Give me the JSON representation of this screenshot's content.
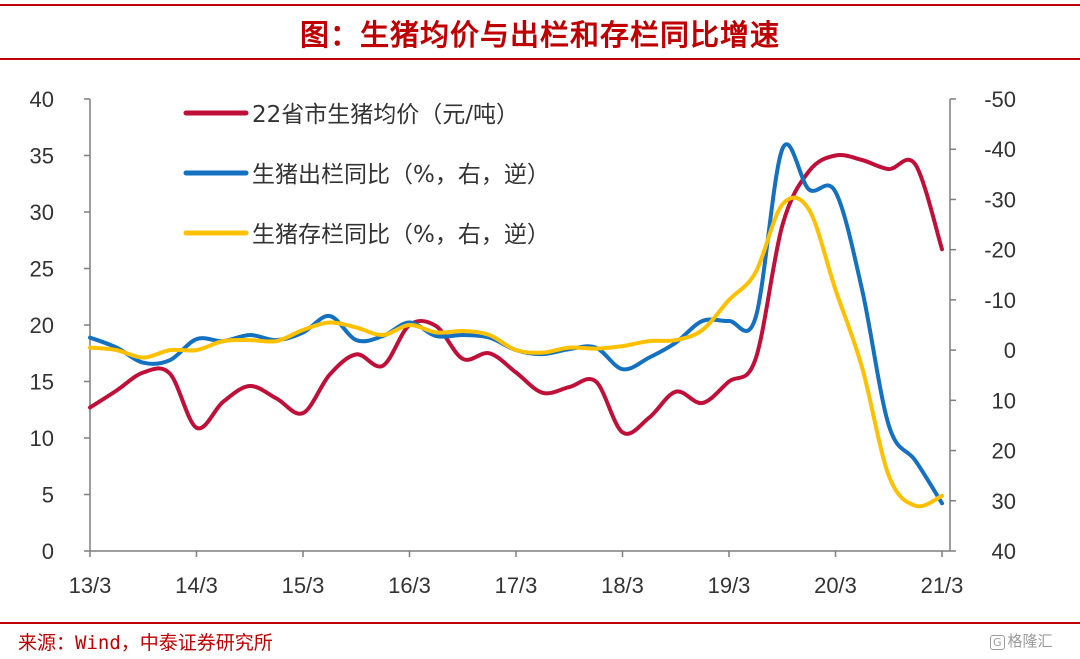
{
  "title": "图：生猪均价与出栏和存栏同比增速",
  "source": "来源：Wind，中泰证券研究所",
  "watermark": "格隆汇",
  "chart_data": {
    "type": "line",
    "x_ticks": [
      "13/3",
      "14/3",
      "15/3",
      "16/3",
      "17/3",
      "18/3",
      "19/3",
      "20/3",
      "21/3"
    ],
    "x_range": [
      2013.0,
      2021.0
    ],
    "left_axis": {
      "ticks": [
        "0",
        "5",
        "10",
        "15",
        "20",
        "25",
        "30",
        "35",
        "40"
      ],
      "ylim": [
        0,
        40
      ]
    },
    "right_axis": {
      "ticks": [
        "-50",
        "-40",
        "-30",
        "-20",
        "-10",
        "0",
        "10",
        "20",
        "30",
        "40"
      ],
      "ylim": [
        -50,
        40
      ],
      "inverted": true
    },
    "series": [
      {
        "name": "22省市生猪均价（元/吨）",
        "color": "#c0103a",
        "axis": "left",
        "points": [
          [
            2013.0,
            12.7
          ],
          [
            2013.25,
            14.2
          ],
          [
            2013.5,
            15.8
          ],
          [
            2013.75,
            15.7
          ],
          [
            2014.0,
            10.9
          ],
          [
            2014.25,
            13.2
          ],
          [
            2014.5,
            14.6
          ],
          [
            2014.75,
            13.5
          ],
          [
            2015.0,
            12.2
          ],
          [
            2015.25,
            15.6
          ],
          [
            2015.5,
            17.4
          ],
          [
            2015.75,
            16.4
          ],
          [
            2016.0,
            20.0
          ],
          [
            2016.25,
            19.9
          ],
          [
            2016.5,
            17.0
          ],
          [
            2016.75,
            17.5
          ],
          [
            2017.0,
            15.8
          ],
          [
            2017.25,
            14.0
          ],
          [
            2017.5,
            14.5
          ],
          [
            2017.75,
            15.0
          ],
          [
            2018.0,
            10.5
          ],
          [
            2018.25,
            11.8
          ],
          [
            2018.5,
            14.1
          ],
          [
            2018.75,
            13.1
          ],
          [
            2019.0,
            15.0
          ],
          [
            2019.25,
            17.0
          ],
          [
            2019.5,
            28.8
          ],
          [
            2019.75,
            33.6
          ],
          [
            2020.0,
            35.0
          ],
          [
            2020.25,
            34.6
          ],
          [
            2020.5,
            33.8
          ],
          [
            2020.75,
            34.2
          ],
          [
            2021.0,
            26.7
          ]
        ]
      },
      {
        "name": "生猪出栏同比（%，右，逆）",
        "color": "#1470c0",
        "axis": "right",
        "points": [
          [
            2013.0,
            -2.5
          ],
          [
            2013.25,
            -0.5
          ],
          [
            2013.5,
            2.5
          ],
          [
            2013.75,
            2.0
          ],
          [
            2014.0,
            -2.2
          ],
          [
            2014.25,
            -1.8
          ],
          [
            2014.5,
            -3.0
          ],
          [
            2014.75,
            -2.0
          ],
          [
            2015.0,
            -3.5
          ],
          [
            2015.25,
            -6.8
          ],
          [
            2015.5,
            -2.0
          ],
          [
            2015.75,
            -2.8
          ],
          [
            2016.0,
            -5.5
          ],
          [
            2016.25,
            -2.8
          ],
          [
            2016.5,
            -3.0
          ],
          [
            2016.75,
            -2.5
          ],
          [
            2017.0,
            0.0
          ],
          [
            2017.25,
            0.8
          ],
          [
            2017.5,
            -0.2
          ],
          [
            2017.75,
            -0.5
          ],
          [
            2018.0,
            3.8
          ],
          [
            2018.25,
            1.5
          ],
          [
            2018.5,
            -1.5
          ],
          [
            2018.75,
            -5.8
          ],
          [
            2019.0,
            -5.8
          ],
          [
            2019.25,
            -6.5
          ],
          [
            2019.5,
            -40.0
          ],
          [
            2019.75,
            -32.0
          ],
          [
            2020.0,
            -31.5
          ],
          [
            2020.25,
            -12.0
          ],
          [
            2020.5,
            15.0
          ],
          [
            2020.75,
            22.0
          ],
          [
            2021.0,
            30.5
          ]
        ]
      },
      {
        "name": "生猪存栏同比（%，右，逆）",
        "color": "#ffc000",
        "axis": "right",
        "points": [
          [
            2013.0,
            -0.5
          ],
          [
            2013.25,
            0.0
          ],
          [
            2013.5,
            1.5
          ],
          [
            2013.75,
            0.0
          ],
          [
            2014.0,
            0.0
          ],
          [
            2014.25,
            -1.8
          ],
          [
            2014.5,
            -2.0
          ],
          [
            2014.75,
            -1.8
          ],
          [
            2015.0,
            -4.0
          ],
          [
            2015.25,
            -5.5
          ],
          [
            2015.5,
            -4.5
          ],
          [
            2015.75,
            -3.0
          ],
          [
            2016.0,
            -5.0
          ],
          [
            2016.25,
            -3.5
          ],
          [
            2016.5,
            -3.8
          ],
          [
            2016.75,
            -3.0
          ],
          [
            2017.0,
            0.0
          ],
          [
            2017.25,
            0.5
          ],
          [
            2017.5,
            -0.5
          ],
          [
            2017.75,
            -0.3
          ],
          [
            2018.0,
            -0.8
          ],
          [
            2018.25,
            -1.8
          ],
          [
            2018.5,
            -2.0
          ],
          [
            2018.75,
            -4.0
          ],
          [
            2019.0,
            -10.0
          ],
          [
            2019.25,
            -15.5
          ],
          [
            2019.5,
            -29.0
          ],
          [
            2019.75,
            -28.0
          ],
          [
            2020.0,
            -12.0
          ],
          [
            2020.25,
            3.5
          ],
          [
            2020.5,
            25.0
          ],
          [
            2020.75,
            31.0
          ],
          [
            2021.0,
            29.0
          ]
        ]
      }
    ]
  }
}
